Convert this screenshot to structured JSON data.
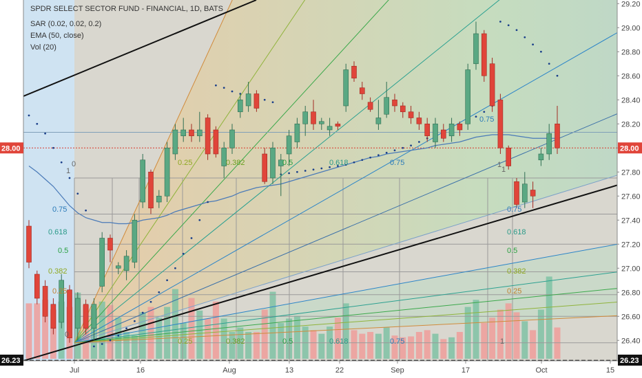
{
  "header": {
    "title": "SPDR SELECT SECTOR FUND - FINANCIAL, 1D, BATS",
    "indicators": [
      "SAR (0.02, 0.02, 0.2)",
      "EMA (50, close)",
      "Vol (20)"
    ]
  },
  "price_badges": {
    "current": "28.00",
    "low_line": "26.23"
  },
  "chart_data": {
    "type": "candlestick",
    "ylim": [
      26.23,
      29.23
    ],
    "y_ticks": [
      "29.20",
      "29.00",
      "28.80",
      "28.60",
      "28.40",
      "28.20",
      "28.00",
      "27.80",
      "27.60",
      "27.40",
      "27.20",
      "27.00",
      "26.80",
      "26.60",
      "26.40",
      "26.23"
    ],
    "x_ticks": [
      "Jul",
      "16",
      "Aug",
      "13",
      "22",
      "Sep",
      "17",
      "Oct",
      "15"
    ],
    "candles": [
      {
        "o": 27.35,
        "h": 27.4,
        "l": 27.0,
        "c": 27.05
      },
      {
        "o": 26.95,
        "h": 26.98,
        "l": 26.7,
        "c": 26.75
      },
      {
        "o": 26.85,
        "h": 26.9,
        "l": 26.55,
        "c": 26.6
      },
      {
        "o": 26.7,
        "h": 26.75,
        "l": 26.45,
        "c": 26.5
      },
      {
        "o": 26.55,
        "h": 26.95,
        "l": 26.5,
        "c": 26.9
      },
      {
        "o": 26.82,
        "h": 26.86,
        "l": 26.38,
        "c": 26.42
      },
      {
        "o": 26.5,
        "h": 26.8,
        "l": 26.4,
        "c": 26.75
      },
      {
        "o": 26.7,
        "h": 26.74,
        "l": 26.45,
        "c": 26.5
      },
      {
        "o": 26.5,
        "h": 26.75,
        "l": 26.4,
        "c": 26.7
      },
      {
        "o": 26.85,
        "h": 27.3,
        "l": 26.8,
        "c": 27.25
      },
      {
        "o": 27.25,
        "h": 27.28,
        "l": 27.05,
        "c": 27.15
      },
      {
        "o": 27.0,
        "h": 27.05,
        "l": 26.95,
        "c": 27.02
      },
      {
        "o": 26.98,
        "h": 27.15,
        "l": 26.9,
        "c": 27.1
      },
      {
        "o": 27.05,
        "h": 27.45,
        "l": 27.0,
        "c": 27.4
      },
      {
        "o": 27.55,
        "h": 27.95,
        "l": 27.5,
        "c": 27.9
      },
      {
        "o": 27.8,
        "h": 27.82,
        "l": 27.45,
        "c": 27.5
      },
      {
        "o": 27.55,
        "h": 27.65,
        "l": 27.5,
        "c": 27.6
      },
      {
        "o": 27.6,
        "h": 28.05,
        "l": 27.55,
        "c": 28.0
      },
      {
        "o": 27.95,
        "h": 28.2,
        "l": 27.9,
        "c": 28.15
      },
      {
        "o": 28.1,
        "h": 28.25,
        "l": 28.05,
        "c": 28.15
      },
      {
        "o": 28.15,
        "h": 28.2,
        "l": 28.05,
        "c": 28.1
      },
      {
        "o": 28.1,
        "h": 28.3,
        "l": 28.05,
        "c": 28.15
      },
      {
        "o": 28.25,
        "h": 28.28,
        "l": 27.9,
        "c": 27.95
      },
      {
        "o": 28.15,
        "h": 28.18,
        "l": 27.92,
        "c": 27.95
      },
      {
        "o": 27.85,
        "h": 28.05,
        "l": 27.75,
        "c": 28.0
      },
      {
        "o": 28.0,
        "h": 28.2,
        "l": 27.95,
        "c": 28.15
      },
      {
        "o": 28.3,
        "h": 28.45,
        "l": 28.25,
        "c": 28.4
      },
      {
        "o": 28.35,
        "h": 28.55,
        "l": 28.3,
        "c": 28.45
      },
      {
        "o": 28.45,
        "h": 28.48,
        "l": 28.3,
        "c": 28.33
      },
      {
        "o": 27.95,
        "h": 28.0,
        "l": 27.7,
        "c": 27.72
      },
      {
        "o": 27.75,
        "h": 28.05,
        "l": 27.7,
        "c": 28.0
      },
      {
        "o": 27.85,
        "h": 27.95,
        "l": 27.6,
        "c": 27.9
      },
      {
        "o": 27.95,
        "h": 28.15,
        "l": 27.85,
        "c": 28.1
      },
      {
        "o": 28.05,
        "h": 28.25,
        "l": 28.0,
        "c": 28.2
      },
      {
        "o": 28.2,
        "h": 28.35,
        "l": 28.1,
        "c": 28.3
      },
      {
        "o": 28.3,
        "h": 28.4,
        "l": 28.15,
        "c": 28.2
      },
      {
        "o": 28.2,
        "h": 28.25,
        "l": 28.15,
        "c": 28.22
      },
      {
        "o": 28.15,
        "h": 28.25,
        "l": 28.1,
        "c": 28.18
      },
      {
        "o": 28.2,
        "h": 28.22,
        "l": 28.15,
        "c": 28.18
      },
      {
        "o": 28.35,
        "h": 28.7,
        "l": 28.3,
        "c": 28.65
      },
      {
        "o": 28.68,
        "h": 28.72,
        "l": 28.55,
        "c": 28.58
      },
      {
        "o": 28.5,
        "h": 28.55,
        "l": 28.4,
        "c": 28.45
      },
      {
        "o": 28.38,
        "h": 28.42,
        "l": 28.3,
        "c": 28.32
      },
      {
        "o": 28.2,
        "h": 28.4,
        "l": 28.15,
        "c": 28.25
      },
      {
        "o": 28.28,
        "h": 28.55,
        "l": 28.25,
        "c": 28.42
      },
      {
        "o": 28.4,
        "h": 28.45,
        "l": 28.3,
        "c": 28.35
      },
      {
        "o": 28.35,
        "h": 28.38,
        "l": 28.25,
        "c": 28.3
      },
      {
        "o": 28.3,
        "h": 28.35,
        "l": 28.2,
        "c": 28.25
      },
      {
        "o": 28.25,
        "h": 28.3,
        "l": 28.15,
        "c": 28.2
      },
      {
        "o": 28.2,
        "h": 28.25,
        "l": 28.05,
        "c": 28.1
      },
      {
        "o": 28.05,
        "h": 28.25,
        "l": 28.0,
        "c": 28.2
      },
      {
        "o": 28.15,
        "h": 28.2,
        "l": 28.05,
        "c": 28.08
      },
      {
        "o": 28.1,
        "h": 28.25,
        "l": 28.05,
        "c": 28.2
      },
      {
        "o": 28.2,
        "h": 28.22,
        "l": 28.1,
        "c": 28.15
      },
      {
        "o": 28.2,
        "h": 28.7,
        "l": 28.15,
        "c": 28.65
      },
      {
        "o": 28.7,
        "h": 29.05,
        "l": 28.65,
        "c": 28.95
      },
      {
        "o": 28.95,
        "h": 28.98,
        "l": 28.55,
        "c": 28.6
      },
      {
        "o": 28.7,
        "h": 28.75,
        "l": 28.3,
        "c": 28.35
      },
      {
        "o": 28.4,
        "h": 28.45,
        "l": 27.95,
        "c": 28.0
      },
      {
        "o": 28.0,
        "h": 28.02,
        "l": 27.82,
        "c": 27.85
      },
      {
        "o": 27.72,
        "h": 27.75,
        "l": 27.5,
        "c": 27.53
      },
      {
        "o": 27.55,
        "h": 27.8,
        "l": 27.5,
        "c": 27.7
      },
      {
        "o": 27.65,
        "h": 27.72,
        "l": 27.5,
        "c": 27.6
      },
      {
        "o": 27.9,
        "h": 28.0,
        "l": 27.85,
        "c": 27.95
      },
      {
        "o": 27.95,
        "h": 28.2,
        "l": 27.9,
        "c": 28.12
      },
      {
        "o": 28.2,
        "h": 28.35,
        "l": 27.95,
        "c": 28.0
      }
    ],
    "volume_relative": [
      0.62,
      0.62,
      0.66,
      0.55,
      0.64,
      0.58,
      0.74,
      0.6,
      0.56,
      0.64,
      0.6,
      0.46,
      0.3,
      0.26,
      0.52,
      0.58,
      0.46,
      0.58,
      0.78,
      0.4,
      0.68,
      0.54,
      0.45,
      0.64,
      0.45,
      0.3,
      0.35,
      0.3,
      0.3,
      0.55,
      0.75,
      0.4,
      0.45,
      0.48,
      0.36,
      0.32,
      0.28,
      0.36,
      0.46,
      0.62,
      0.32,
      0.28,
      0.3,
      0.28,
      0.35,
      0.26,
      0.24,
      0.25,
      0.3,
      0.32,
      0.28,
      0.22,
      0.24,
      0.3,
      0.58,
      0.66,
      0.4,
      0.46,
      0.55,
      0.62,
      0.52,
      0.42,
      0.32,
      0.55,
      0.92,
      0.35
    ],
    "ema_50": [
      27.85,
      27.8,
      27.74,
      27.68,
      27.6,
      27.52,
      27.46,
      27.42,
      27.4,
      27.38,
      27.38,
      27.37,
      27.37,
      27.38,
      27.4,
      27.41,
      27.42,
      27.44,
      27.47,
      27.49,
      27.51,
      27.53,
      27.55,
      27.56,
      27.58,
      27.6,
      27.63,
      27.65,
      27.67,
      27.68,
      27.69,
      27.7,
      27.72,
      27.74,
      27.76,
      27.78,
      27.8,
      27.82,
      27.84,
      27.86,
      27.88,
      27.9,
      27.92,
      27.93,
      27.95,
      27.96,
      27.97,
      27.98,
      27.99,
      28.0,
      28.02,
      28.03,
      28.04,
      28.05,
      28.07,
      28.09,
      28.1,
      28.11,
      28.11,
      28.11,
      28.1,
      28.09,
      28.08,
      28.08,
      28.08,
      28.08
    ],
    "sar": [
      28.27,
      28.2,
      28.12,
      28.0,
      27.88,
      27.75,
      27.62,
      27.48,
      26.35,
      26.37,
      26.4,
      26.44,
      26.5,
      26.56,
      26.63,
      26.72,
      26.8,
      26.9,
      27.0,
      27.12,
      27.25,
      27.4,
      27.55,
      28.52,
      28.5,
      28.47,
      28.45,
      28.43,
      28.42,
      28.4,
      28.38,
      27.78,
      27.79,
      27.8,
      27.81,
      27.82,
      27.83,
      27.84,
      27.85,
      27.86,
      27.88,
      27.9,
      27.92,
      27.94,
      27.96,
      27.98,
      28.0,
      28.02,
      28.05,
      28.08,
      28.1,
      28.12,
      28.15,
      28.18,
      28.22,
      28.26,
      28.3,
      28.35,
      29.05,
      29.02,
      28.98,
      28.92,
      28.86,
      28.8,
      28.7,
      28.6
    ],
    "fib_fan": {
      "levels": [
        "0.25",
        "0.382",
        "0.5",
        "0.618",
        "0.75",
        "1"
      ],
      "top_level_labels": [
        "0.25",
        "0.382",
        "0.5",
        "0.618",
        "0.75"
      ],
      "side_labels": [
        "0.75",
        "0.618",
        "0.5",
        "0.382",
        "0.25",
        "0"
      ],
      "right_side_labels": [
        "1",
        "0.75",
        "0.618",
        "0.5",
        "0.382",
        "0.25"
      ],
      "bottom_labels": [
        "0.25",
        "0.382",
        "0.5",
        "0.618",
        "0.75",
        "1"
      ]
    },
    "reference_lines": {
      "current_price": 28.0,
      "base_price": 26.23
    }
  }
}
